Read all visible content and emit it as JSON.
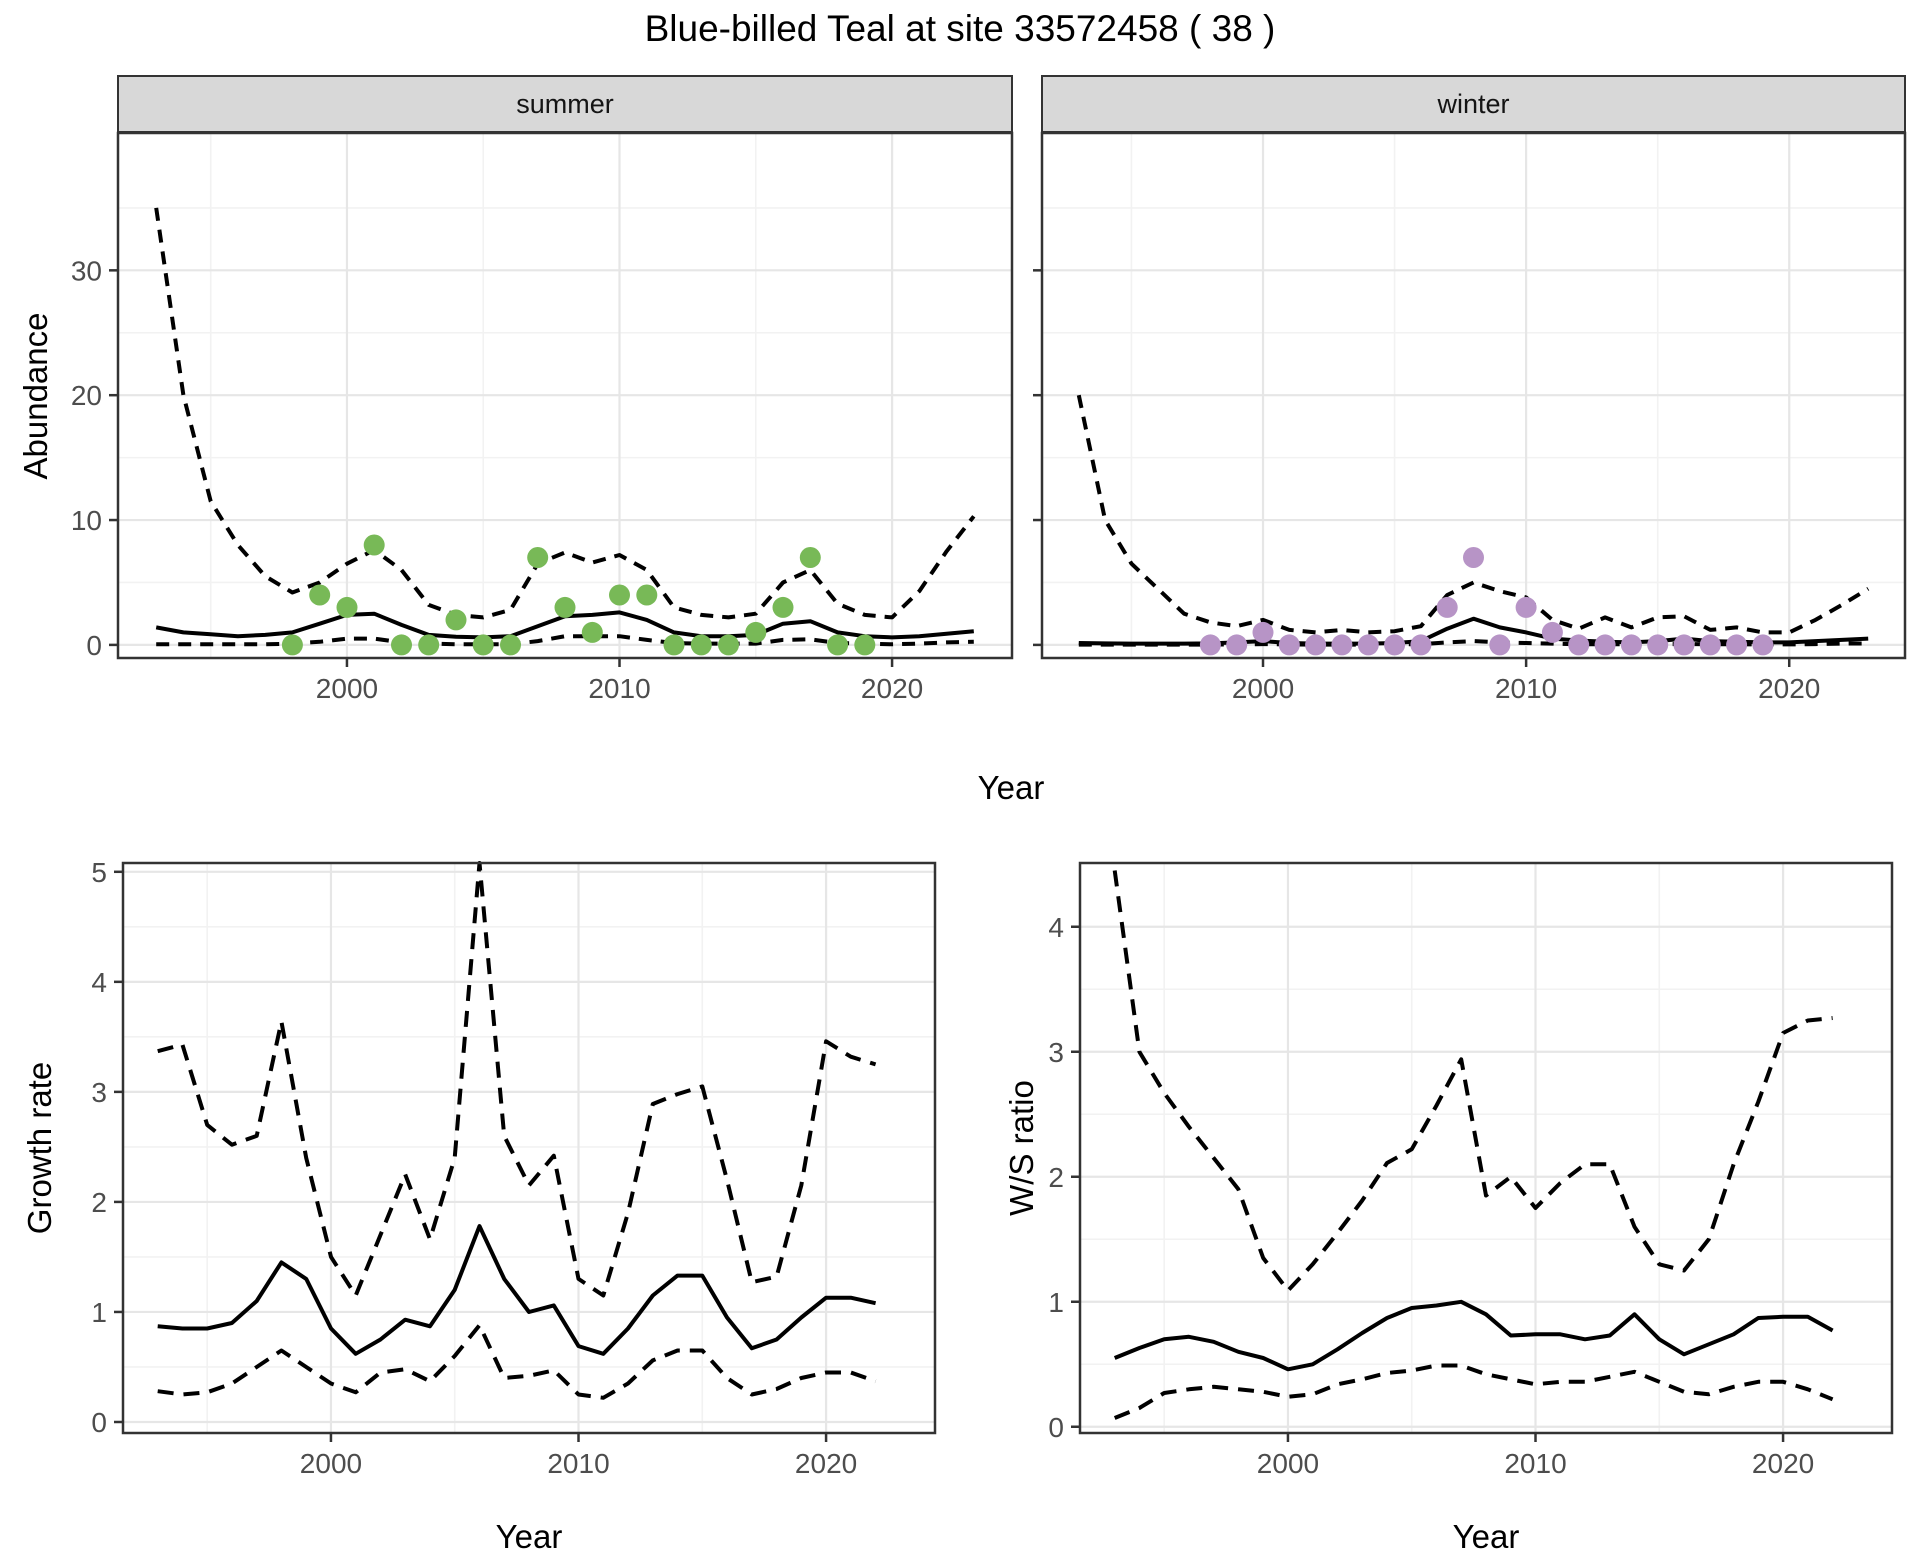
{
  "title": "Blue-billed Teal at site 33572458 ( 38 )",
  "facets": [
    {
      "label": "summer"
    },
    {
      "label": "winter"
    }
  ],
  "axes": {
    "abundance": "Abundance",
    "growth": "Growth rate",
    "ws": "W/S ratio",
    "year_top": "Year",
    "year_growth": "Year",
    "year_ws": "Year"
  },
  "colors": {
    "summer_dot": "#78B957",
    "winter_dot": "#B794C6",
    "line": "#000000",
    "strip_bg": "#D8D8D8",
    "panel_border": "#333333",
    "grid_major": "#E6E6E6",
    "grid_minor": "#F2F2F2",
    "axis_text": "#4D4D4D"
  },
  "chart_data": [
    {
      "id": "abundance_summer",
      "type": "line",
      "facet": "summer",
      "xlabel": "Year",
      "ylabel": "Abundance",
      "grid": true,
      "legend": "none",
      "xlim": [
        1991.6,
        2024.4
      ],
      "ylim": [
        -1.05,
        41.0
      ],
      "xticks": [
        2000,
        2010,
        2020
      ],
      "xticks_minor": [
        1995,
        2005,
        2015
      ],
      "yticks": [
        0,
        10,
        20,
        30
      ],
      "yticks_minor": [
        5,
        15,
        25,
        35
      ],
      "x": [
        1993,
        1994,
        1995,
        1996,
        1997,
        1998,
        1999,
        2000,
        2001,
        2002,
        2003,
        2004,
        2005,
        2006,
        2007,
        2008,
        2009,
        2010,
        2011,
        2012,
        2013,
        2014,
        2015,
        2016,
        2017,
        2018,
        2019,
        2020,
        2021,
        2022,
        2023
      ],
      "series": [
        {
          "name": "upper_ci",
          "style": "dashed",
          "values": [
            35,
            20,
            11.5,
            8,
            5.5,
            4.2,
            5,
            6.5,
            7.6,
            6.0,
            3.2,
            2.4,
            2.2,
            2.8,
            6.5,
            7.4,
            6.6,
            7.2,
            6.0,
            3.0,
            2.4,
            2.2,
            2.5,
            5.0,
            6.0,
            3.3,
            2.4,
            2.2,
            4.3,
            7.5,
            10.3
          ]
        },
        {
          "name": "lower_ci",
          "style": "dashed",
          "values": [
            0.05,
            0.05,
            0.05,
            0.05,
            0.05,
            0.1,
            0.25,
            0.5,
            0.5,
            0.2,
            0.1,
            0.05,
            0.05,
            0.05,
            0.3,
            0.7,
            0.7,
            0.7,
            0.4,
            0.15,
            0.1,
            0.1,
            0.1,
            0.4,
            0.45,
            0.15,
            0.1,
            0.05,
            0.1,
            0.2,
            0.25
          ]
        },
        {
          "name": "median",
          "style": "solid",
          "values": [
            1.4,
            1.0,
            0.85,
            0.7,
            0.8,
            1.0,
            1.7,
            2.4,
            2.5,
            1.6,
            0.8,
            0.65,
            0.6,
            0.7,
            1.5,
            2.3,
            2.4,
            2.6,
            2.0,
            1.0,
            0.7,
            0.7,
            0.8,
            1.7,
            1.9,
            1.0,
            0.7,
            0.6,
            0.7,
            0.9,
            1.1
          ]
        }
      ],
      "points": {
        "name": "observed_counts",
        "color_key": "summer_dot",
        "x": [
          1998,
          1999,
          2000,
          2001,
          2002,
          2003,
          2004,
          2005,
          2006,
          2007,
          2008,
          2009,
          2010,
          2011,
          2012,
          2013,
          2014,
          2015,
          2016,
          2017,
          2018,
          2019
        ],
        "y": [
          0,
          4,
          3,
          8,
          0,
          0,
          2,
          0,
          0,
          7,
          3,
          1,
          4,
          4,
          0,
          0,
          0,
          1,
          3,
          7,
          0,
          0
        ]
      }
    },
    {
      "id": "abundance_winter",
      "type": "line",
      "facet": "winter",
      "xlabel": "Year",
      "ylabel": "Abundance",
      "grid": true,
      "legend": "none",
      "xlim": [
        1991.6,
        2024.4
      ],
      "ylim": [
        -1.05,
        41.0
      ],
      "xticks": [
        2000,
        2010,
        2020
      ],
      "xticks_minor": [
        1995,
        2005,
        2015
      ],
      "yticks": [
        0,
        10,
        20,
        30
      ],
      "yticks_minor": [
        5,
        15,
        25,
        35
      ],
      "x": [
        1993,
        1994,
        1995,
        1996,
        1997,
        1998,
        1999,
        2000,
        2001,
        2002,
        2003,
        2004,
        2005,
        2006,
        2007,
        2008,
        2009,
        2010,
        2011,
        2012,
        2013,
        2014,
        2015,
        2016,
        2017,
        2018,
        2019,
        2020,
        2021,
        2022,
        2023
      ],
      "series": [
        {
          "name": "upper_ci",
          "style": "dashed",
          "values": [
            20,
            10,
            6.5,
            4.5,
            2.5,
            1.8,
            1.5,
            2.0,
            1.2,
            1.0,
            1.2,
            1.0,
            1.1,
            1.5,
            4.0,
            5.0,
            4.3,
            3.8,
            2.0,
            1.3,
            2.2,
            1.4,
            2.2,
            2.3,
            1.2,
            1.4,
            1.0,
            1.0,
            2.0,
            3.2,
            4.5
          ]
        },
        {
          "name": "lower_ci",
          "style": "dashed",
          "values": [
            0.02,
            0.02,
            0.02,
            0.02,
            0.02,
            0.02,
            0.03,
            0.06,
            0.03,
            0.02,
            0.02,
            0.02,
            0.03,
            0.06,
            0.2,
            0.3,
            0.2,
            0.15,
            0.1,
            0.05,
            0.05,
            0.05,
            0.05,
            0.06,
            0.05,
            0.05,
            0.04,
            0.04,
            0.06,
            0.1,
            0.12
          ]
        },
        {
          "name": "median",
          "style": "solid",
          "values": [
            0.15,
            0.12,
            0.1,
            0.1,
            0.1,
            0.12,
            0.2,
            0.3,
            0.15,
            0.1,
            0.1,
            0.1,
            0.15,
            0.3,
            1.3,
            2.1,
            1.4,
            1.0,
            0.5,
            0.35,
            0.25,
            0.2,
            0.3,
            0.5,
            0.3,
            0.25,
            0.2,
            0.2,
            0.3,
            0.4,
            0.5
          ]
        }
      ],
      "points": {
        "name": "observed_counts",
        "color_key": "winter_dot",
        "x": [
          1998,
          1999,
          2000,
          2001,
          2002,
          2003,
          2004,
          2005,
          2006,
          2007,
          2008,
          2009,
          2010,
          2011,
          2012,
          2013,
          2014,
          2015,
          2016,
          2017,
          2018,
          2019
        ],
        "y": [
          0,
          0,
          1,
          0,
          0,
          0,
          0,
          0,
          0,
          3,
          7,
          0,
          3,
          1,
          0,
          0,
          0,
          0,
          0,
          0,
          0,
          0
        ]
      }
    },
    {
      "id": "growth_rate",
      "type": "line",
      "xlabel": "Year",
      "ylabel": "Growth rate",
      "grid": true,
      "legend": "none",
      "xlim": [
        1991.6,
        2024.4
      ],
      "ylim": [
        -0.1,
        5.08
      ],
      "xticks": [
        2000,
        2010,
        2020
      ],
      "xticks_minor": [
        1995,
        2005,
        2015
      ],
      "yticks": [
        0,
        1,
        2,
        3,
        4,
        5
      ],
      "yticks_minor": [
        0.5,
        1.5,
        2.5,
        3.5,
        4.5
      ],
      "x": [
        1993,
        1994,
        1995,
        1996,
        1997,
        1998,
        1999,
        2000,
        2001,
        2002,
        2003,
        2004,
        2005,
        2006,
        2007,
        2008,
        2009,
        2010,
        2011,
        2012,
        2013,
        2014,
        2015,
        2016,
        2017,
        2018,
        2019,
        2020,
        2021,
        2022
      ],
      "series": [
        {
          "name": "upper_ci",
          "style": "dashed",
          "values": [
            3.37,
            3.43,
            2.7,
            2.52,
            2.6,
            3.64,
            2.4,
            1.5,
            1.15,
            1.7,
            2.25,
            1.66,
            2.4,
            5.08,
            2.6,
            2.15,
            2.42,
            1.3,
            1.15,
            1.9,
            2.89,
            2.98,
            3.05,
            2.2,
            1.27,
            1.32,
            2.15,
            3.46,
            3.32,
            3.25
          ]
        },
        {
          "name": "lower_ci",
          "style": "dashed",
          "values": [
            0.28,
            0.25,
            0.27,
            0.35,
            0.5,
            0.65,
            0.5,
            0.35,
            0.27,
            0.45,
            0.48,
            0.37,
            0.6,
            0.88,
            0.4,
            0.42,
            0.47,
            0.25,
            0.22,
            0.35,
            0.56,
            0.65,
            0.65,
            0.4,
            0.25,
            0.3,
            0.4,
            0.45,
            0.45,
            0.37
          ]
        },
        {
          "name": "median",
          "style": "solid",
          "values": [
            0.87,
            0.85,
            0.85,
            0.9,
            1.1,
            1.45,
            1.3,
            0.85,
            0.62,
            0.75,
            0.93,
            0.87,
            1.2,
            1.78,
            1.3,
            1.0,
            1.06,
            0.69,
            0.62,
            0.85,
            1.15,
            1.33,
            1.33,
            0.95,
            0.67,
            0.75,
            0.95,
            1.13,
            1.13,
            1.08
          ]
        }
      ]
    },
    {
      "id": "ws_ratio",
      "type": "line",
      "xlabel": "Year",
      "ylabel": "W/S ratio",
      "grid": true,
      "legend": "none",
      "xlim": [
        1991.6,
        2024.4
      ],
      "ylim": [
        -0.05,
        4.51
      ],
      "xticks": [
        2000,
        2010,
        2020
      ],
      "xticks_minor": [
        1995,
        2005,
        2015
      ],
      "yticks": [
        0,
        1,
        2,
        3,
        4
      ],
      "yticks_minor": [
        0.5,
        1.5,
        2.5,
        3.5
      ],
      "x": [
        1993,
        1994,
        1995,
        1996,
        1997,
        1998,
        1999,
        2000,
        2001,
        2002,
        2003,
        2004,
        2005,
        2006,
        2007,
        2008,
        2009,
        2010,
        2011,
        2012,
        2013,
        2014,
        2015,
        2016,
        2017,
        2018,
        2019,
        2020,
        2021,
        2022
      ],
      "series": [
        {
          "name": "upper_ci",
          "style": "dashed",
          "values": [
            4.45,
            3.0,
            2.67,
            2.4,
            2.15,
            1.9,
            1.35,
            1.09,
            1.3,
            1.55,
            1.81,
            2.11,
            2.22,
            2.57,
            2.94,
            1.85,
            2.0,
            1.75,
            1.95,
            2.1,
            2.1,
            1.6,
            1.3,
            1.25,
            1.5,
            2.1,
            2.6,
            3.15,
            3.25,
            3.27
          ]
        },
        {
          "name": "lower_ci",
          "style": "dashed",
          "values": [
            0.07,
            0.15,
            0.27,
            0.3,
            0.32,
            0.3,
            0.28,
            0.24,
            0.26,
            0.34,
            0.38,
            0.43,
            0.45,
            0.49,
            0.49,
            0.42,
            0.38,
            0.34,
            0.36,
            0.36,
            0.4,
            0.44,
            0.36,
            0.28,
            0.26,
            0.32,
            0.36,
            0.36,
            0.3,
            0.22
          ]
        },
        {
          "name": "median",
          "style": "solid",
          "values": [
            0.55,
            0.63,
            0.7,
            0.72,
            0.68,
            0.6,
            0.55,
            0.46,
            0.5,
            0.62,
            0.75,
            0.87,
            0.95,
            0.97,
            1.0,
            0.9,
            0.73,
            0.74,
            0.74,
            0.7,
            0.73,
            0.9,
            0.7,
            0.58,
            0.66,
            0.74,
            0.87,
            0.88,
            0.88,
            0.77
          ]
        }
      ]
    }
  ]
}
